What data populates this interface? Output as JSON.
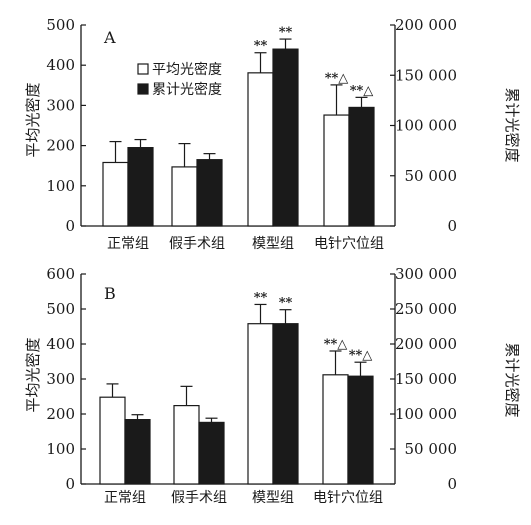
{
  "chart_data": [
    {
      "type": "bar",
      "panel_label": "A",
      "categories": [
        "正常组",
        "假手术组",
        "模型组",
        "电针穴位组"
      ],
      "ylabel": "平均光密度",
      "ylim": [
        0,
        500
      ],
      "yticks": [
        "0",
        "100",
        "200",
        "300",
        "400",
        "500"
      ],
      "ylabel_right": "累计光密度",
      "ylim_right": [
        0,
        200000
      ],
      "yticks_right": [
        "0",
        "50 000",
        "100 000",
        "150 000",
        "200 000"
      ],
      "legend_position": "top-left",
      "series": [
        {
          "name": "平均光密度",
          "axis": "left",
          "fill": "#ffffff",
          "values": [
            158,
            147,
            381,
            276
          ],
          "errors": [
            52,
            58,
            50,
            75
          ],
          "annotations": [
            "",
            "",
            "**",
            "**△"
          ]
        },
        {
          "name": "累计光密度",
          "axis": "right",
          "fill": "#1a1a1a",
          "values": [
            78000,
            66000,
            176000,
            118000
          ],
          "errors": [
            8000,
            6000,
            10000,
            10000
          ],
          "annotations": [
            "",
            "",
            "**",
            "**△"
          ]
        }
      ]
    },
    {
      "type": "bar",
      "panel_label": "B",
      "categories": [
        "正常组",
        "假手术组",
        "模型组",
        "电针穴位组"
      ],
      "ylabel": "平均光密度",
      "ylim": [
        0,
        600
      ],
      "yticks": [
        "0",
        "100",
        "200",
        "300",
        "400",
        "500",
        "600"
      ],
      "ylabel_right": "累计光密度",
      "ylim_right": [
        0,
        300000
      ],
      "yticks_right": [
        "0",
        "50 000",
        "100 000",
        "150 000",
        "200 000",
        "250 000",
        "300 000"
      ],
      "legend_position": "none",
      "series": [
        {
          "name": "平均光密度",
          "axis": "left",
          "fill": "#ffffff",
          "values": [
            248,
            224,
            458,
            312
          ],
          "errors": [
            38,
            55,
            55,
            68
          ],
          "annotations": [
            "",
            "",
            "**",
            "**△"
          ]
        },
        {
          "name": "累计光密度",
          "axis": "right",
          "fill": "#1a1a1a",
          "values": [
            92000,
            88000,
            229000,
            154000
          ],
          "errors": [
            7000,
            6000,
            20000,
            20000
          ],
          "annotations": [
            "",
            "",
            "**",
            "**△"
          ]
        }
      ]
    }
  ]
}
